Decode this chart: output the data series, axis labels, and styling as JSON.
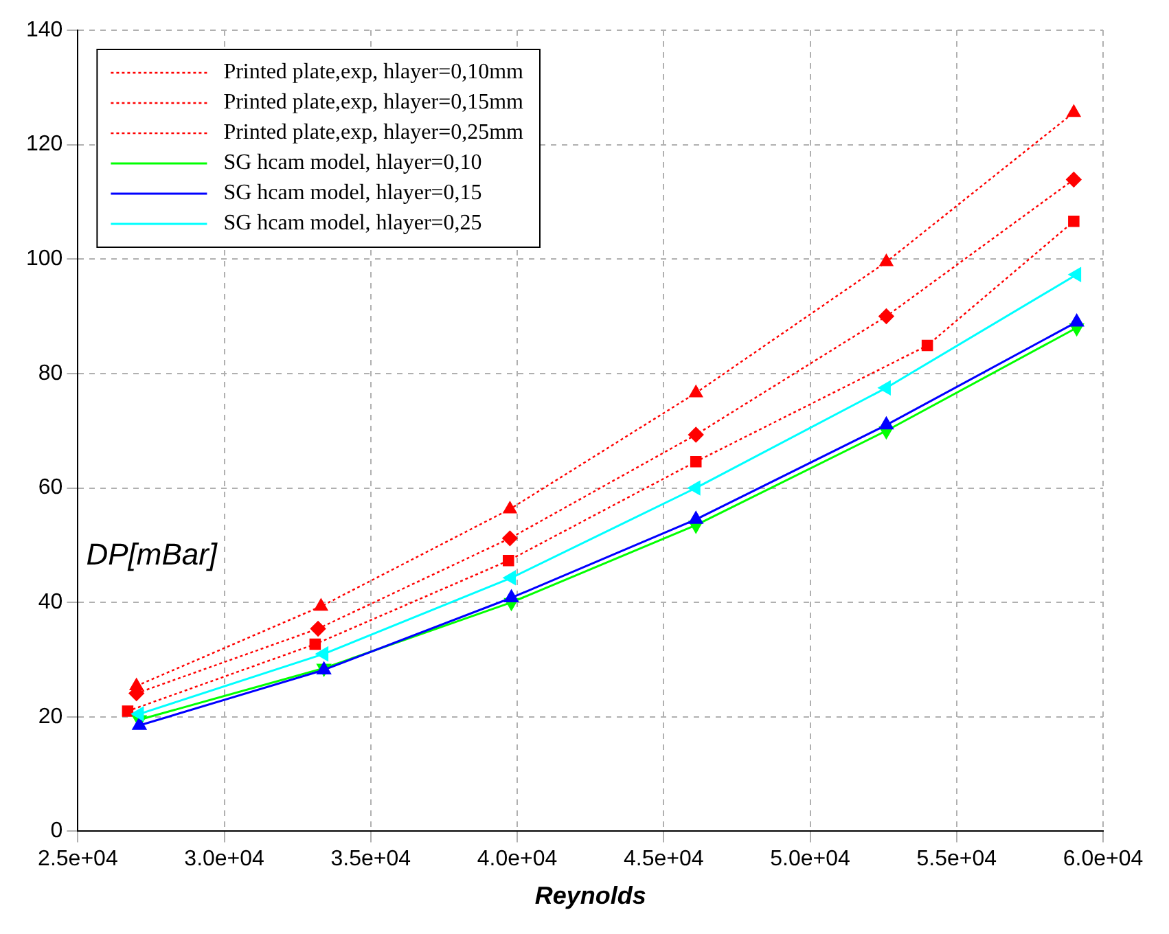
{
  "chart_data": {
    "type": "line",
    "xlabel": "Reynolds",
    "ylabel": "DP[mBar]",
    "xlim": [
      25000,
      60000
    ],
    "xticks": [
      {
        "value": 25000,
        "label": "2.5e+04"
      },
      {
        "value": 30000,
        "label": "3.0e+04"
      },
      {
        "value": 35000,
        "label": "3.5e+04"
      },
      {
        "value": 40000,
        "label": "4.0e+04"
      },
      {
        "value": 45000,
        "label": "4.5e+04"
      },
      {
        "value": 50000,
        "label": "5.0e+04"
      },
      {
        "value": 55000,
        "label": "5.5e+04"
      },
      {
        "value": 60000,
        "label": "6.0e+04"
      }
    ],
    "ylim": [
      0,
      140
    ],
    "yticks": [
      0,
      20,
      40,
      60,
      80,
      100,
      120,
      140
    ],
    "grid": true,
    "legend": "top left",
    "series": [
      {
        "name": "Printed plate,exp, hlayer=0,10mm",
        "color": "#ff0000",
        "marker": "square",
        "line_style": "dotted",
        "x": [
          26700,
          33100,
          39700,
          46100,
          54000,
          59000
        ],
        "values": [
          21.0,
          32.7,
          47.3,
          64.6,
          84.9,
          106.6
        ]
      },
      {
        "name": "Printed plate,exp, hlayer=0,15mm",
        "color": "#ff0000",
        "marker": "diamond",
        "line_style": "dotted",
        "x": [
          27000,
          33200,
          39750,
          46100,
          52600,
          59000
        ],
        "values": [
          24.1,
          35.4,
          51.2,
          69.3,
          90.0,
          113.9
        ]
      },
      {
        "name": "Printed plate,exp, hlayer=0,25mm",
        "color": "#ff0000",
        "marker": "triangle",
        "line_style": "dotted",
        "x": [
          27000,
          33300,
          39750,
          46100,
          52600,
          59000
        ],
        "values": [
          25.4,
          39.3,
          56.3,
          76.6,
          99.5,
          125.6
        ]
      },
      {
        "name": "SG hcam model, hlayer=0,10",
        "color": "#00ff00",
        "marker": "triangle-down",
        "line_style": "solid",
        "x": [
          27100,
          33400,
          39800,
          46100,
          52600,
          59100
        ],
        "values": [
          19.5,
          28.5,
          40.0,
          53.5,
          70.0,
          88.0
        ]
      },
      {
        "name": "SG hcam model, hlayer=0,15",
        "color": "#0000ff",
        "marker": "triangle",
        "line_style": "solid",
        "x": [
          27100,
          33400,
          39800,
          46100,
          52600,
          59100
        ],
        "values": [
          18.5,
          28.2,
          40.8,
          54.5,
          71.0,
          89.0
        ]
      },
      {
        "name": "SG hcam model, hlayer=0,25",
        "color": "#00ffff",
        "marker": "triangle-left",
        "line_style": "solid",
        "x": [
          27100,
          33400,
          39800,
          46100,
          52600,
          59100
        ],
        "values": [
          20.5,
          31.0,
          44.3,
          60.0,
          77.5,
          97.3
        ]
      }
    ]
  }
}
